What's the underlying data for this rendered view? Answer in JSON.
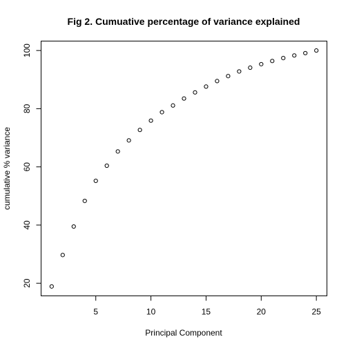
{
  "chart_data": {
    "type": "scatter",
    "title": "Fig 2. Cumuative percentage of variance explained",
    "xlabel": "Principal Component",
    "ylabel": "cumulative % variance",
    "x": [
      1,
      2,
      3,
      4,
      5,
      6,
      7,
      8,
      9,
      10,
      11,
      12,
      13,
      14,
      15,
      16,
      17,
      18,
      19,
      20,
      21,
      22,
      23,
      24,
      25
    ],
    "y": [
      18.9,
      29.7,
      39.5,
      48.3,
      55.2,
      60.4,
      65.3,
      69.1,
      72.7,
      75.9,
      78.8,
      81.1,
      83.5,
      85.6,
      87.6,
      89.5,
      91.2,
      92.8,
      94.1,
      95.3,
      96.4,
      97.4,
      98.3,
      99.1,
      100.0
    ],
    "xlim": [
      0.04,
      25.96
    ],
    "ylim": [
      15.66,
      103.24
    ],
    "xticks": [
      5,
      10,
      15,
      20,
      25
    ],
    "yticks": [
      20,
      40,
      60,
      80,
      100
    ],
    "grid": false,
    "marker": "open-circle"
  }
}
